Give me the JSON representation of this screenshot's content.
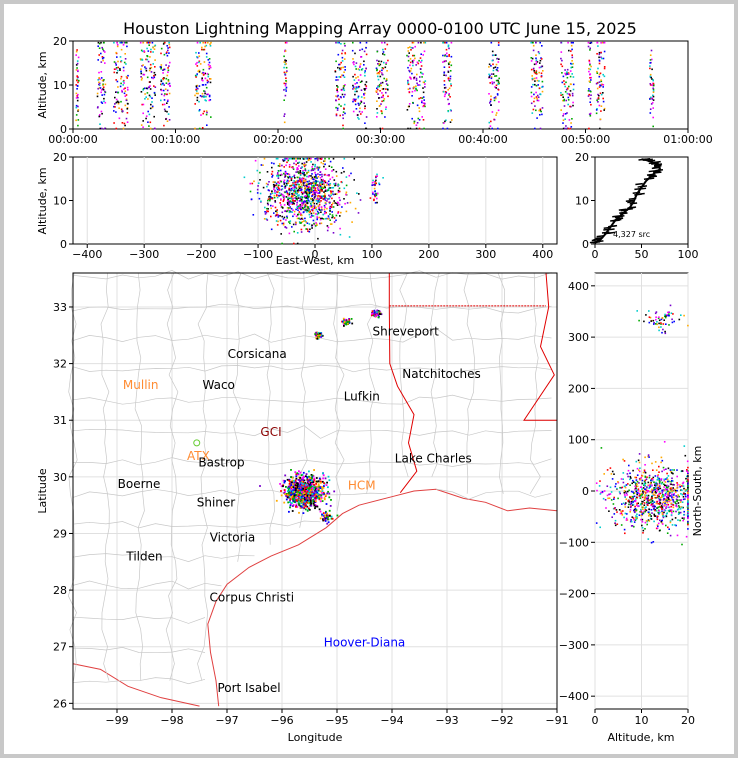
{
  "title": "Houston Lightning Mapping Array 0000-0100 UTC June 15, 2025",
  "colors": {
    "border": "#000000",
    "grid": "#e0e0e0",
    "county": "#c8c8c8",
    "state": "#e00000",
    "coast": "#e04040",
    "city": "#000000",
    "hoover": "#0000ff",
    "orange": "#ff8c33",
    "green": "#66cc33",
    "palette": [
      "#0000ff",
      "#00aa00",
      "#ff0000",
      "#000000",
      "#00cccc",
      "#ff00ff",
      "#ffaa00",
      "#7700cc"
    ]
  },
  "chart_data": [
    {
      "id": "time-altitude",
      "type": "scatter",
      "xlabel": "",
      "ylabel": "Altitude, km",
      "xlim": [
        0,
        60
      ],
      "ylim": [
        0,
        20
      ],
      "xticks": [
        "00:00:00",
        "00:10:00",
        "00:20:00",
        "00:30:00",
        "00:40:00",
        "00:50:00",
        "01:00:00"
      ],
      "yticks": [
        0,
        10,
        20
      ],
      "clusters": [
        {
          "t": 0.2,
          "w": 0.3
        },
        {
          "t": 2.3,
          "w": 0.8
        },
        {
          "t": 3.9,
          "w": 1.4
        },
        {
          "t": 6.5,
          "w": 1.5
        },
        {
          "t": 8.4,
          "w": 1.0
        },
        {
          "t": 11.8,
          "w": 1.6
        },
        {
          "t": 20.5,
          "w": 0.3
        },
        {
          "t": 25.5,
          "w": 1.0
        },
        {
          "t": 27.2,
          "w": 1.4
        },
        {
          "t": 29.5,
          "w": 1.2
        },
        {
          "t": 32.5,
          "w": 1.8
        },
        {
          "t": 36.0,
          "w": 0.9
        },
        {
          "t": 40.5,
          "w": 1.0
        },
        {
          "t": 44.6,
          "w": 1.2
        },
        {
          "t": 47.5,
          "w": 1.3
        },
        {
          "t": 50.2,
          "w": 0.3
        },
        {
          "t": 51.0,
          "w": 0.8
        },
        {
          "t": 56.2,
          "w": 0.4
        }
      ]
    },
    {
      "id": "ew-altitude",
      "type": "scatter",
      "xlabel": "East-West, km",
      "ylabel": "Altitude, km",
      "xlim": [
        -425,
        425
      ],
      "ylim": [
        0,
        20
      ],
      "xticks": [
        -400,
        -300,
        -200,
        -100,
        0,
        100,
        200,
        300,
        400
      ],
      "yticks": [
        0,
        10,
        20
      ],
      "clusters": [
        {
          "x": -20,
          "sx": 35,
          "y": 12,
          "sy": 4
        },
        {
          "x": 105,
          "sx": 4,
          "y": 13,
          "sy": 2
        }
      ]
    },
    {
      "id": "altitude-histogram",
      "type": "line",
      "xlabel": "",
      "ylabel": "",
      "xlim": [
        0,
        100
      ],
      "ylim": [
        0,
        20
      ],
      "xticks": [
        0,
        50,
        100
      ],
      "yticks": [
        0,
        10,
        20
      ],
      "annotation": "4,327 src",
      "points": [
        [
          0,
          0.3
        ],
        [
          5,
          0.8
        ],
        [
          8,
          1.5
        ],
        [
          12,
          2.5
        ],
        [
          15,
          3.5
        ],
        [
          18,
          4.3
        ],
        [
          22,
          5.5
        ],
        [
          26,
          6.2
        ],
        [
          30,
          7
        ],
        [
          34,
          7.8
        ],
        [
          38,
          8.5
        ],
        [
          42,
          10
        ],
        [
          45,
          11.5
        ],
        [
          50,
          13
        ],
        [
          55,
          14.5
        ],
        [
          60,
          15.5
        ],
        [
          65,
          16.5
        ],
        [
          70,
          17.2
        ],
        [
          68,
          18
        ],
        [
          64,
          18.5
        ],
        [
          60,
          19
        ],
        [
          55,
          19.3
        ],
        [
          50,
          19.5
        ]
      ]
    },
    {
      "id": "plan-view",
      "type": "scatter",
      "xlabel": "Longitude",
      "ylabel": "Latitude",
      "xlim": [
        -99.8,
        -91.0
      ],
      "ylim": [
        25.9,
        33.6
      ],
      "xticks": [
        -99,
        -98,
        -97,
        -96,
        -95,
        -94,
        -93,
        -92,
        -91
      ],
      "yticks": [
        26,
        27,
        28,
        29,
        30,
        31,
        32,
        33
      ],
      "clusters": [
        {
          "lon": -95.6,
          "lat": 29.75,
          "s": 0.17
        },
        {
          "lon": -94.85,
          "lat": 32.75,
          "s": 0.04
        },
        {
          "lon": -95.35,
          "lat": 32.52,
          "s": 0.03
        },
        {
          "lon": -94.3,
          "lat": 32.9,
          "s": 0.04
        },
        {
          "lon": -95.2,
          "lat": 29.3,
          "s": 0.05
        }
      ]
    },
    {
      "id": "altitude-ns",
      "type": "scatter",
      "xlabel": "Altitude, km",
      "ylabel": "North-South, km",
      "xlim": [
        0,
        20
      ],
      "ylim": [
        -425,
        425
      ],
      "xticks": [
        0,
        10,
        20
      ],
      "yticks": [
        -400,
        -300,
        -200,
        -100,
        0,
        100,
        200,
        300,
        400
      ],
      "clusters": [
        {
          "alt": 13,
          "salt": 5,
          "ns": -10,
          "sns": 30
        },
        {
          "alt": 14,
          "salt": 2,
          "ns": 335,
          "sns": 12
        }
      ]
    }
  ],
  "cities": [
    {
      "name": "Corsicana",
      "lon": -96.45,
      "lat": 32.1,
      "kind": "city"
    },
    {
      "name": "Shreveport",
      "lon": -93.75,
      "lat": 32.5,
      "kind": "city"
    },
    {
      "name": "Mullin",
      "lon": -98.57,
      "lat": 31.55,
      "kind": "orange"
    },
    {
      "name": "Waco",
      "lon": -97.15,
      "lat": 31.55,
      "kind": "city"
    },
    {
      "name": "Natchitoches",
      "lon": -93.1,
      "lat": 31.75,
      "kind": "city"
    },
    {
      "name": "Lufkin",
      "lon": -94.55,
      "lat": 31.35,
      "kind": "city"
    },
    {
      "name": "ATX",
      "lon": -97.52,
      "lat": 30.3,
      "kind": "orange"
    },
    {
      "name": "Bastrop",
      "lon": -97.1,
      "lat": 30.18,
      "kind": "city"
    },
    {
      "name": "Lake Charles",
      "lon": -93.25,
      "lat": 30.25,
      "kind": "city"
    },
    {
      "name": "Boerne",
      "lon": -98.6,
      "lat": 29.8,
      "kind": "city"
    },
    {
      "name": "Shiner",
      "lon": -97.2,
      "lat": 29.48,
      "kind": "city"
    },
    {
      "name": "Victoria",
      "lon": -96.9,
      "lat": 28.86,
      "kind": "city"
    },
    {
      "name": "Tilden",
      "lon": -98.5,
      "lat": 28.52,
      "kind": "city"
    },
    {
      "name": "Corpus Christi",
      "lon": -96.55,
      "lat": 27.8,
      "kind": "city"
    },
    {
      "name": "Hoover-Diana",
      "lon": -94.5,
      "lat": 27.0,
      "kind": "hoover"
    },
    {
      "name": "Port Isabel",
      "lon": -96.6,
      "lat": 26.2,
      "kind": "city"
    },
    {
      "name": "GCI",
      "lon": -96.2,
      "lat": 30.72,
      "kind": "darkred"
    },
    {
      "name": "HCM",
      "lon": -94.55,
      "lat": 29.78,
      "kind": "orange"
    }
  ]
}
